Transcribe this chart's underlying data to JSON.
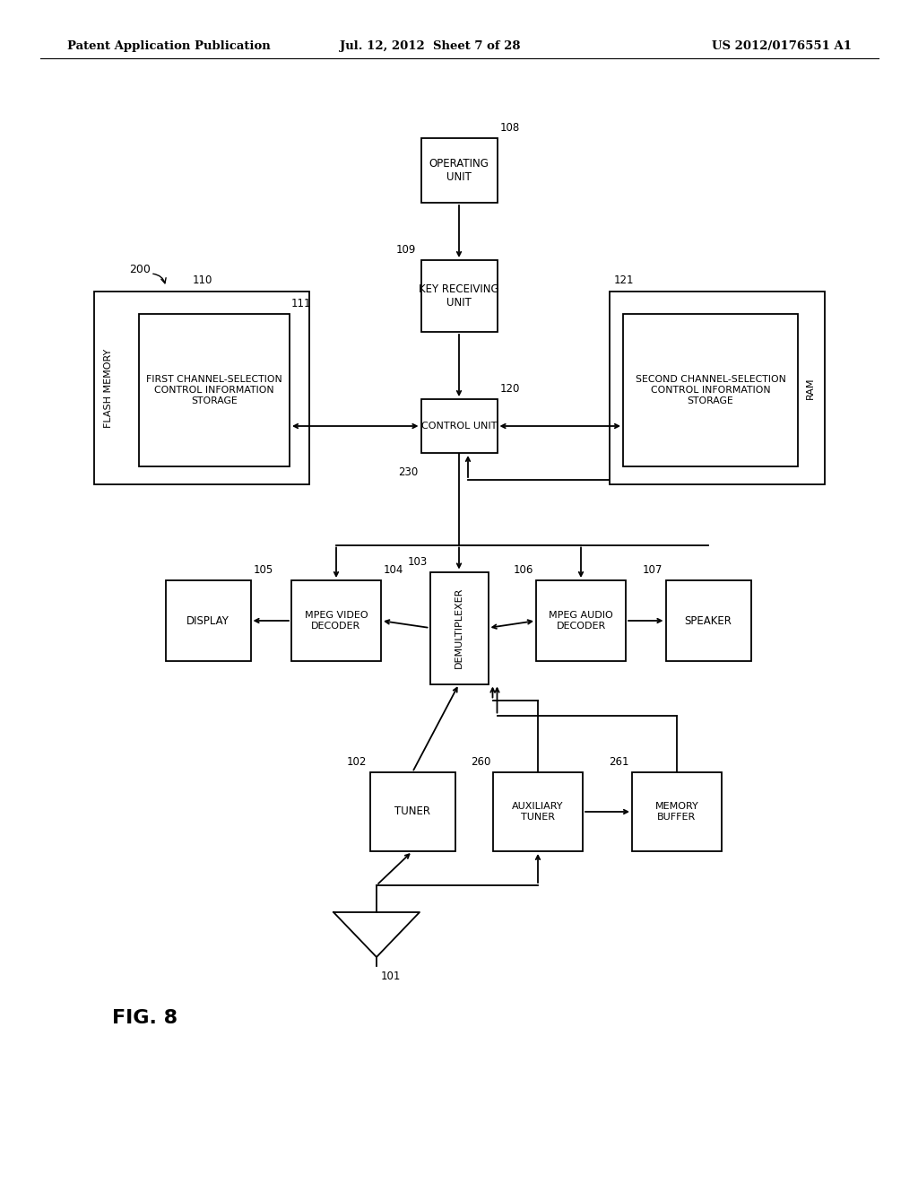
{
  "background_color": "#ffffff",
  "header_left": "Patent Application Publication",
  "header_center": "Jul. 12, 2012  Sheet 7 of 28",
  "header_right": "US 2012/0176551 A1",
  "figure_label": "FIG. 8"
}
